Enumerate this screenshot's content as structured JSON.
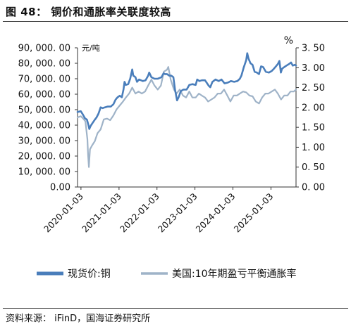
{
  "figure": {
    "title": "图 48：  铜价和通胀率关联度较高",
    "source": "资料来源：  iFinD，国海证券研究所"
  },
  "chart_data": {
    "type": "line",
    "left_axis": {
      "unit": "元/吨",
      "ylim": [
        0,
        90000
      ],
      "ticks": [
        "0.00",
        "10, 000. 00",
        "20, 000. 00",
        "30, 000. 00",
        "40, 000. 00",
        "50, 000. 00",
        "60, 000. 00",
        "70, 000. 00",
        "80, 000. 00",
        "90, 000. 00"
      ],
      "tick_values": [
        0,
        10000,
        20000,
        30000,
        40000,
        50000,
        60000,
        70000,
        80000,
        90000
      ]
    },
    "right_axis": {
      "unit": "%",
      "ylim": [
        0,
        3.5
      ],
      "ticks": [
        "0. 00",
        "0. 50",
        "1. 00",
        "1. 50",
        "2. 00",
        "2. 50",
        "3. 00",
        "3. 50"
      ],
      "tick_values": [
        0,
        0.5,
        1.0,
        1.5,
        2.0,
        2.5,
        3.0,
        3.5
      ]
    },
    "x_axis": {
      "range": [
        "2019-12-01",
        "2025-09-01"
      ],
      "ticks": [
        "2020-01-03",
        "2021-01-03",
        "2022-01-03",
        "2023-01-03",
        "2024-01-03",
        "2025-01-03"
      ]
    },
    "series": [
      {
        "name": "现货价:铜",
        "axis": "left",
        "color": "#4a7ebb",
        "points": [
          [
            "2019-12-01",
            48500
          ],
          [
            "2020-01-01",
            49000
          ],
          [
            "2020-01-20",
            47000
          ],
          [
            "2020-02-10",
            44500
          ],
          [
            "2020-03-01",
            43500
          ],
          [
            "2020-03-15",
            40000
          ],
          [
            "2020-03-23",
            37500
          ],
          [
            "2020-04-05",
            39500
          ],
          [
            "2020-04-25",
            41500
          ],
          [
            "2020-05-15",
            43500
          ],
          [
            "2020-06-01",
            45000
          ],
          [
            "2020-06-20",
            47500
          ],
          [
            "2020-07-10",
            51500
          ],
          [
            "2020-07-30",
            51000
          ],
          [
            "2020-08-20",
            51500
          ],
          [
            "2020-09-15",
            52000
          ],
          [
            "2020-10-15",
            52000
          ],
          [
            "2020-11-10",
            53500
          ],
          [
            "2020-12-01",
            56500
          ],
          [
            "2020-12-20",
            58000
          ],
          [
            "2021-01-10",
            59000
          ],
          [
            "2021-01-30",
            58000
          ],
          [
            "2021-02-15",
            63000
          ],
          [
            "2021-02-25",
            68000
          ],
          [
            "2021-03-10",
            66000
          ],
          [
            "2021-04-01",
            66500
          ],
          [
            "2021-04-20",
            70000
          ],
          [
            "2021-05-10",
            76000
          ],
          [
            "2021-05-20",
            72000
          ],
          [
            "2021-06-10",
            71000
          ],
          [
            "2021-06-25",
            68000
          ],
          [
            "2021-07-15",
            69500
          ],
          [
            "2021-08-20",
            68500
          ],
          [
            "2021-09-15",
            69000
          ],
          [
            "2021-10-10",
            72000
          ],
          [
            "2021-10-20",
            74000
          ],
          [
            "2021-11-10",
            71000
          ],
          [
            "2021-12-10",
            70000
          ],
          [
            "2022-01-10",
            70000
          ],
          [
            "2022-02-15",
            71000
          ],
          [
            "2022-03-07",
            73500
          ],
          [
            "2022-03-20",
            73000
          ],
          [
            "2022-04-10",
            73000
          ],
          [
            "2022-04-30",
            72000
          ],
          [
            "2022-05-20",
            72000
          ],
          [
            "2022-06-10",
            71000
          ],
          [
            "2022-06-25",
            63000
          ],
          [
            "2022-07-15",
            56000
          ],
          [
            "2022-07-30",
            58000
          ],
          [
            "2022-08-20",
            62000
          ],
          [
            "2022-09-15",
            63000
          ],
          [
            "2022-10-15",
            63000
          ],
          [
            "2022-11-10",
            66000
          ],
          [
            "2022-12-10",
            66500
          ],
          [
            "2023-01-10",
            66000
          ],
          [
            "2023-01-25",
            69500
          ],
          [
            "2023-02-15",
            68500
          ],
          [
            "2023-03-10",
            69000
          ],
          [
            "2023-04-10",
            69000
          ],
          [
            "2023-05-15",
            65500
          ],
          [
            "2023-05-30",
            64500
          ],
          [
            "2023-06-20",
            68000
          ],
          [
            "2023-07-20",
            69500
          ],
          [
            "2023-08-20",
            68500
          ],
          [
            "2023-09-15",
            69500
          ],
          [
            "2023-10-15",
            67000
          ],
          [
            "2023-11-15",
            67500
          ],
          [
            "2023-12-15",
            68500
          ],
          [
            "2024-01-15",
            68000
          ],
          [
            "2024-02-15",
            68500
          ],
          [
            "2024-03-10",
            70000
          ],
          [
            "2024-03-25",
            72000
          ],
          [
            "2024-04-15",
            77000
          ],
          [
            "2024-05-10",
            82000
          ],
          [
            "2024-05-20",
            86500
          ],
          [
            "2024-06-01",
            83000
          ],
          [
            "2024-06-20",
            80000
          ],
          [
            "2024-07-10",
            79000
          ],
          [
            "2024-07-30",
            74500
          ],
          [
            "2024-08-20",
            74000
          ],
          [
            "2024-09-10",
            73000
          ],
          [
            "2024-09-30",
            78000
          ],
          [
            "2024-10-20",
            77500
          ],
          [
            "2024-11-15",
            74500
          ],
          [
            "2024-12-15",
            74000
          ],
          [
            "2025-01-10",
            75000
          ],
          [
            "2025-02-01",
            76500
          ],
          [
            "2025-02-20",
            78000
          ],
          [
            "2025-03-10",
            79500
          ],
          [
            "2025-03-25",
            81500
          ],
          [
            "2025-04-08",
            74000
          ],
          [
            "2025-04-20",
            76500
          ],
          [
            "2025-05-10",
            77500
          ],
          [
            "2025-06-01",
            78500
          ],
          [
            "2025-06-25",
            79500
          ],
          [
            "2025-07-15",
            80500
          ],
          [
            "2025-08-01",
            78500
          ],
          [
            "2025-08-20",
            79000
          ],
          [
            "2025-09-01",
            78500
          ]
        ]
      },
      {
        "name": "美国:10年期盈亏平衡通胀率",
        "axis": "right",
        "color": "#9fb3c8",
        "points": [
          [
            "2019-12-01",
            1.75
          ],
          [
            "2020-01-01",
            1.78
          ],
          [
            "2020-01-25",
            1.72
          ],
          [
            "2020-02-15",
            1.65
          ],
          [
            "2020-03-05",
            1.2
          ],
          [
            "2020-03-12",
            0.8
          ],
          [
            "2020-03-19",
            0.5
          ],
          [
            "2020-03-30",
            0.95
          ],
          [
            "2020-04-20",
            1.05
          ],
          [
            "2020-05-15",
            1.15
          ],
          [
            "2020-06-10",
            1.35
          ],
          [
            "2020-07-10",
            1.45
          ],
          [
            "2020-08-10",
            1.7
          ],
          [
            "2020-09-10",
            1.72
          ],
          [
            "2020-10-10",
            1.68
          ],
          [
            "2020-11-10",
            1.8
          ],
          [
            "2020-12-10",
            1.95
          ],
          [
            "2021-01-10",
            2.05
          ],
          [
            "2021-02-10",
            2.15
          ],
          [
            "2021-03-10",
            2.25
          ],
          [
            "2021-04-10",
            2.35
          ],
          [
            "2021-05-10",
            2.5
          ],
          [
            "2021-06-10",
            2.35
          ],
          [
            "2021-07-10",
            2.4
          ],
          [
            "2021-08-10",
            2.35
          ],
          [
            "2021-09-10",
            2.4
          ],
          [
            "2021-10-10",
            2.55
          ],
          [
            "2021-11-10",
            2.7
          ],
          [
            "2021-12-10",
            2.55
          ],
          [
            "2022-01-10",
            2.45
          ],
          [
            "2022-02-10",
            2.55
          ],
          [
            "2022-03-10",
            2.9
          ],
          [
            "2022-04-10",
            2.95
          ],
          [
            "2022-04-22",
            3.02
          ],
          [
            "2022-05-15",
            2.7
          ],
          [
            "2022-06-15",
            2.45
          ],
          [
            "2022-07-10",
            2.35
          ],
          [
            "2022-08-10",
            2.45
          ],
          [
            "2022-09-10",
            2.3
          ],
          [
            "2022-10-10",
            2.25
          ],
          [
            "2022-11-10",
            2.4
          ],
          [
            "2022-12-10",
            2.25
          ],
          [
            "2023-01-10",
            2.25
          ],
          [
            "2023-02-10",
            2.35
          ],
          [
            "2023-03-10",
            2.3
          ],
          [
            "2023-04-10",
            2.25
          ],
          [
            "2023-05-10",
            2.15
          ],
          [
            "2023-06-10",
            2.2
          ],
          [
            "2023-07-10",
            2.25
          ],
          [
            "2023-08-10",
            2.35
          ],
          [
            "2023-09-10",
            2.35
          ],
          [
            "2023-10-10",
            2.45
          ],
          [
            "2023-11-10",
            2.3
          ],
          [
            "2023-12-10",
            2.15
          ],
          [
            "2024-01-10",
            2.3
          ],
          [
            "2024-02-10",
            2.3
          ],
          [
            "2024-03-10",
            2.35
          ],
          [
            "2024-04-10",
            2.4
          ],
          [
            "2024-05-10",
            2.38
          ],
          [
            "2024-06-10",
            2.3
          ],
          [
            "2024-07-10",
            2.28
          ],
          [
            "2024-08-10",
            2.15
          ],
          [
            "2024-09-10",
            2.1
          ],
          [
            "2024-10-10",
            2.25
          ],
          [
            "2024-11-10",
            2.35
          ],
          [
            "2024-12-10",
            2.35
          ],
          [
            "2025-01-10",
            2.4
          ],
          [
            "2025-02-10",
            2.45
          ],
          [
            "2025-03-10",
            2.35
          ],
          [
            "2025-04-10",
            2.2
          ],
          [
            "2025-05-10",
            2.3
          ],
          [
            "2025-06-10",
            2.3
          ],
          [
            "2025-07-10",
            2.4
          ],
          [
            "2025-08-10",
            2.4
          ],
          [
            "2025-09-01",
            2.45
          ]
        ]
      }
    ]
  }
}
